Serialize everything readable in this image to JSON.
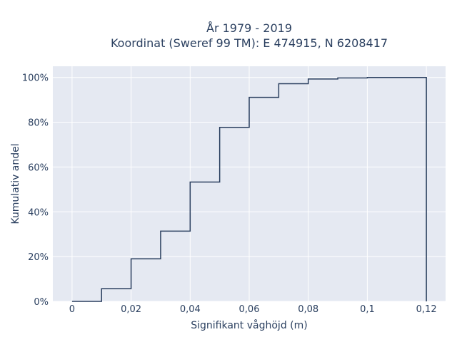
{
  "chart_data": {
    "type": "line",
    "title_line1": "År 1979 - 2019",
    "title_line2": "Koordinat (Sweref 99 TM): E 474915, N 6208417",
    "xlabel": "Signifikant våghöjd (m)",
    "ylabel": "Kumulativ andel",
    "xlim": [
      -0.0065,
      0.1265
    ],
    "ylim": [
      0,
      1.05
    ],
    "x_ticks": [
      0,
      0.02,
      0.04,
      0.06,
      0.08,
      0.1,
      0.12
    ],
    "x_tick_labels": [
      "0",
      "0,02",
      "0,04",
      "0,06",
      "0,08",
      "0,1",
      "0,12"
    ],
    "y_ticks": [
      0,
      0.2,
      0.4,
      0.6,
      0.8,
      1.0
    ],
    "y_tick_labels": [
      "0%",
      "20%",
      "40%",
      "60%",
      "80%",
      "100%"
    ],
    "grid": true,
    "step": "hv",
    "series": [
      {
        "x": [
          0,
          0.01,
          0.02,
          0.03,
          0.04,
          0.05,
          0.06,
          0.07,
          0.08,
          0.09,
          0.1,
          0.12,
          0.12
        ],
        "y": [
          0,
          0.057,
          0.19,
          0.314,
          0.533,
          0.777,
          0.911,
          0.972,
          0.993,
          0.998,
          1.0,
          1.0,
          0
        ],
        "color": "#2a3f5f"
      }
    ]
  },
  "colors": {
    "plot_bg": "#e5e9f2",
    "grid": "#ffffff",
    "line": "#2a3f5f",
    "text": "#2a3f5f"
  }
}
